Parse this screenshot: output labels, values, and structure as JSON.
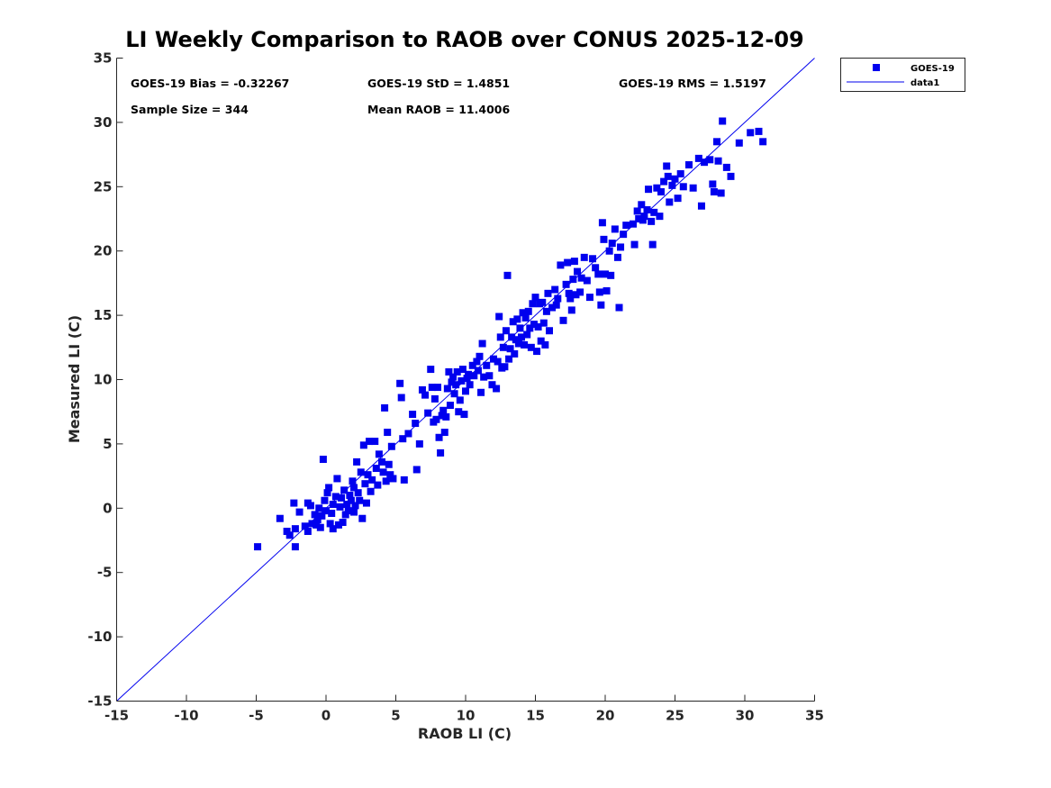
{
  "chart_data": {
    "type": "scatter",
    "title": "LI Weekly Comparison to RAOB over CONUS 2025-12-09",
    "xlabel": "RAOB LI (C)",
    "ylabel": "Measured LI (C)",
    "xlim": [
      -15,
      35
    ],
    "ylim": [
      -15,
      35
    ],
    "xticks": [
      -15,
      -10,
      -5,
      0,
      5,
      10,
      15,
      20,
      25,
      30,
      35
    ],
    "yticks": [
      -15,
      -10,
      -5,
      0,
      5,
      10,
      15,
      20,
      25,
      30,
      35
    ],
    "grid": false,
    "legend_position": "top-right-outside",
    "annotations": [
      "GOES-19 Bias = -0.32267",
      "GOES-19 StD = 1.4851",
      "GOES-19 RMS = 1.5197",
      "Sample Size = 344",
      "Mean RAOB = 11.4006"
    ],
    "stats": {
      "bias": -0.32267,
      "std": 1.4851,
      "rms": 1.5197,
      "sample_size": 344,
      "mean_raob": 11.4006
    },
    "colors": {
      "marker": "#0000ee",
      "line": "#0000ee",
      "axis": "#262626",
      "text": "#262626"
    },
    "series": [
      {
        "name": "GOES-19",
        "kind": "markers",
        "points": [
          [
            -4.9,
            -3.0
          ],
          [
            -3.3,
            -0.8
          ],
          [
            -2.8,
            -1.8
          ],
          [
            -2.6,
            -2.1
          ],
          [
            -2.3,
            0.4
          ],
          [
            -2.2,
            -1.6
          ],
          [
            -2.2,
            -3.0
          ],
          [
            -1.9,
            -0.3
          ],
          [
            -1.5,
            -1.4
          ],
          [
            -1.3,
            -1.8
          ],
          [
            -1.3,
            0.4
          ],
          [
            -1.1,
            0.2
          ],
          [
            -1.0,
            -1.2
          ],
          [
            -0.8,
            -0.5
          ],
          [
            -0.7,
            -1.3
          ],
          [
            -0.6,
            -0.9
          ],
          [
            -0.5,
            0.0
          ],
          [
            -0.4,
            -1.5
          ],
          [
            -0.3,
            -0.6
          ],
          [
            -0.2,
            3.8
          ],
          [
            -0.1,
            0.6
          ],
          [
            0.0,
            -0.2
          ],
          [
            0.1,
            1.2
          ],
          [
            0.2,
            1.6
          ],
          [
            0.3,
            -1.2
          ],
          [
            0.4,
            -0.4
          ],
          [
            0.5,
            0.3
          ],
          [
            0.5,
            -1.6
          ],
          [
            0.7,
            0.9
          ],
          [
            0.8,
            2.3
          ],
          [
            0.9,
            -1.3
          ],
          [
            1.0,
            0.1
          ],
          [
            1.1,
            0.8
          ],
          [
            1.2,
            -1.1
          ],
          [
            1.3,
            1.4
          ],
          [
            1.4,
            -0.5
          ],
          [
            1.5,
            0.3
          ],
          [
            1.6,
            -0.2
          ],
          [
            1.7,
            1.0
          ],
          [
            1.8,
            0.6
          ],
          [
            1.9,
            2.1
          ],
          [
            2.0,
            -0.3
          ],
          [
            2.0,
            1.6
          ],
          [
            2.1,
            0.2
          ],
          [
            2.2,
            3.6
          ],
          [
            2.3,
            1.2
          ],
          [
            2.4,
            0.6
          ],
          [
            2.5,
            2.8
          ],
          [
            2.6,
            -0.8
          ],
          [
            2.7,
            4.9
          ],
          [
            2.8,
            1.9
          ],
          [
            2.9,
            0.4
          ],
          [
            3.0,
            2.6
          ],
          [
            3.1,
            5.2
          ],
          [
            3.2,
            1.3
          ],
          [
            3.3,
            2.2
          ],
          [
            3.5,
            5.2
          ],
          [
            3.6,
            3.1
          ],
          [
            3.7,
            1.8
          ],
          [
            3.8,
            4.2
          ],
          [
            4.0,
            3.6
          ],
          [
            4.1,
            2.8
          ],
          [
            4.2,
            7.8
          ],
          [
            4.3,
            2.1
          ],
          [
            4.4,
            5.9
          ],
          [
            4.5,
            3.4
          ],
          [
            4.6,
            2.6
          ],
          [
            4.7,
            4.8
          ],
          [
            4.8,
            2.3
          ],
          [
            5.3,
            9.7
          ],
          [
            5.4,
            8.6
          ],
          [
            5.5,
            5.4
          ],
          [
            5.6,
            2.2
          ],
          [
            5.9,
            5.8
          ],
          [
            6.2,
            7.3
          ],
          [
            6.4,
            6.6
          ],
          [
            6.5,
            3.0
          ],
          [
            6.7,
            5.0
          ],
          [
            6.9,
            9.2
          ],
          [
            7.1,
            8.8
          ],
          [
            7.3,
            7.4
          ],
          [
            7.5,
            10.8
          ],
          [
            7.6,
            9.4
          ],
          [
            7.7,
            6.7
          ],
          [
            7.8,
            8.5
          ],
          [
            7.9,
            6.9
          ],
          [
            8.0,
            9.4
          ],
          [
            8.1,
            5.5
          ],
          [
            8.2,
            4.3
          ],
          [
            8.3,
            7.2
          ],
          [
            8.4,
            7.6
          ],
          [
            8.5,
            5.9
          ],
          [
            8.6,
            7.1
          ],
          [
            8.7,
            9.3
          ],
          [
            8.8,
            10.6
          ],
          [
            8.9,
            8.0
          ],
          [
            9.0,
            9.8
          ],
          [
            9.1,
            10.2
          ],
          [
            9.2,
            8.9
          ],
          [
            9.3,
            9.6
          ],
          [
            9.4,
            10.6
          ],
          [
            9.5,
            7.5
          ],
          [
            9.6,
            8.4
          ],
          [
            9.7,
            9.9
          ],
          [
            9.8,
            10.8
          ],
          [
            9.9,
            7.3
          ],
          [
            10.0,
            9.1
          ],
          [
            10.1,
            10.1
          ],
          [
            10.2,
            10.4
          ],
          [
            10.3,
            9.6
          ],
          [
            10.5,
            11.1
          ],
          [
            10.6,
            10.3
          ],
          [
            10.8,
            11.4
          ],
          [
            10.9,
            10.7
          ],
          [
            11.0,
            11.8
          ],
          [
            11.1,
            9.0
          ],
          [
            11.2,
            12.8
          ],
          [
            11.3,
            10.2
          ],
          [
            11.5,
            11.1
          ],
          [
            11.7,
            10.3
          ],
          [
            11.9,
            9.6
          ],
          [
            12.0,
            11.6
          ],
          [
            12.2,
            9.3
          ],
          [
            12.3,
            11.4
          ],
          [
            12.4,
            14.9
          ],
          [
            12.5,
            13.3
          ],
          [
            12.6,
            10.9
          ],
          [
            12.7,
            12.5
          ],
          [
            12.8,
            11.0
          ],
          [
            12.9,
            13.8
          ],
          [
            13.0,
            18.1
          ],
          [
            13.1,
            11.6
          ],
          [
            13.2,
            12.4
          ],
          [
            13.3,
            13.3
          ],
          [
            13.4,
            14.5
          ],
          [
            13.5,
            12.0
          ],
          [
            13.6,
            13.1
          ],
          [
            13.7,
            14.7
          ],
          [
            13.8,
            12.8
          ],
          [
            13.9,
            14.0
          ],
          [
            14.0,
            13.3
          ],
          [
            14.1,
            15.2
          ],
          [
            14.2,
            12.7
          ],
          [
            14.3,
            14.8
          ],
          [
            14.4,
            13.5
          ],
          [
            14.5,
            15.3
          ],
          [
            14.6,
            14.0
          ],
          [
            14.7,
            12.5
          ],
          [
            14.8,
            15.9
          ],
          [
            14.9,
            14.3
          ],
          [
            15.0,
            16.4
          ],
          [
            15.1,
            12.2
          ],
          [
            15.2,
            14.1
          ],
          [
            15.3,
            15.9
          ],
          [
            15.4,
            13.0
          ],
          [
            15.5,
            16.0
          ],
          [
            15.6,
            14.4
          ],
          [
            15.7,
            12.7
          ],
          [
            15.8,
            15.3
          ],
          [
            15.9,
            16.7
          ],
          [
            16.0,
            13.8
          ],
          [
            16.2,
            15.6
          ],
          [
            16.4,
            17.0
          ],
          [
            16.5,
            15.8
          ],
          [
            16.6,
            16.3
          ],
          [
            16.8,
            18.9
          ],
          [
            17.0,
            14.6
          ],
          [
            17.2,
            17.4
          ],
          [
            17.3,
            19.1
          ],
          [
            17.4,
            16.7
          ],
          [
            17.5,
            16.3
          ],
          [
            17.6,
            15.4
          ],
          [
            17.7,
            17.8
          ],
          [
            17.8,
            19.2
          ],
          [
            17.9,
            16.6
          ],
          [
            18.0,
            18.4
          ],
          [
            18.2,
            16.8
          ],
          [
            18.3,
            17.9
          ],
          [
            18.5,
            19.5
          ],
          [
            18.7,
            17.7
          ],
          [
            18.9,
            16.4
          ],
          [
            19.1,
            19.4
          ],
          [
            19.3,
            18.7
          ],
          [
            19.5,
            18.2
          ],
          [
            19.6,
            16.8
          ],
          [
            19.7,
            15.8
          ],
          [
            19.8,
            22.2
          ],
          [
            19.9,
            20.9
          ],
          [
            20.0,
            18.2
          ],
          [
            20.1,
            16.9
          ],
          [
            20.3,
            20.0
          ],
          [
            20.4,
            18.1
          ],
          [
            20.5,
            20.6
          ],
          [
            20.7,
            21.7
          ],
          [
            20.9,
            19.5
          ],
          [
            21.0,
            15.6
          ],
          [
            21.1,
            20.3
          ],
          [
            21.3,
            21.3
          ],
          [
            21.5,
            22.0
          ],
          [
            22.0,
            22.1
          ],
          [
            22.1,
            20.5
          ],
          [
            22.3,
            23.1
          ],
          [
            22.4,
            22.5
          ],
          [
            22.6,
            23.6
          ],
          [
            22.7,
            22.4
          ],
          [
            22.8,
            22.7
          ],
          [
            23.0,
            23.2
          ],
          [
            23.1,
            24.8
          ],
          [
            23.3,
            22.3
          ],
          [
            23.4,
            20.5
          ],
          [
            23.5,
            23.0
          ],
          [
            23.7,
            24.9
          ],
          [
            23.9,
            22.7
          ],
          [
            24.0,
            24.6
          ],
          [
            24.2,
            25.4
          ],
          [
            24.4,
            26.6
          ],
          [
            24.5,
            25.8
          ],
          [
            24.6,
            23.8
          ],
          [
            24.8,
            25.1
          ],
          [
            25.0,
            25.6
          ],
          [
            25.2,
            24.1
          ],
          [
            25.4,
            26.0
          ],
          [
            25.6,
            25.0
          ],
          [
            26.0,
            26.7
          ],
          [
            26.3,
            24.9
          ],
          [
            26.7,
            27.2
          ],
          [
            26.9,
            23.5
          ],
          [
            27.1,
            26.9
          ],
          [
            27.5,
            27.1
          ],
          [
            27.7,
            25.2
          ],
          [
            27.8,
            24.6
          ],
          [
            28.0,
            28.5
          ],
          [
            28.1,
            27.0
          ],
          [
            28.3,
            24.5
          ],
          [
            28.4,
            30.1
          ],
          [
            28.7,
            26.5
          ],
          [
            29.0,
            25.8
          ],
          [
            29.6,
            28.4
          ],
          [
            30.4,
            29.2
          ],
          [
            31.0,
            29.3
          ],
          [
            31.3,
            28.5
          ]
        ]
      },
      {
        "name": "data1",
        "kind": "line",
        "points": [
          [
            -15,
            -15
          ],
          [
            35,
            35
          ]
        ]
      }
    ]
  }
}
